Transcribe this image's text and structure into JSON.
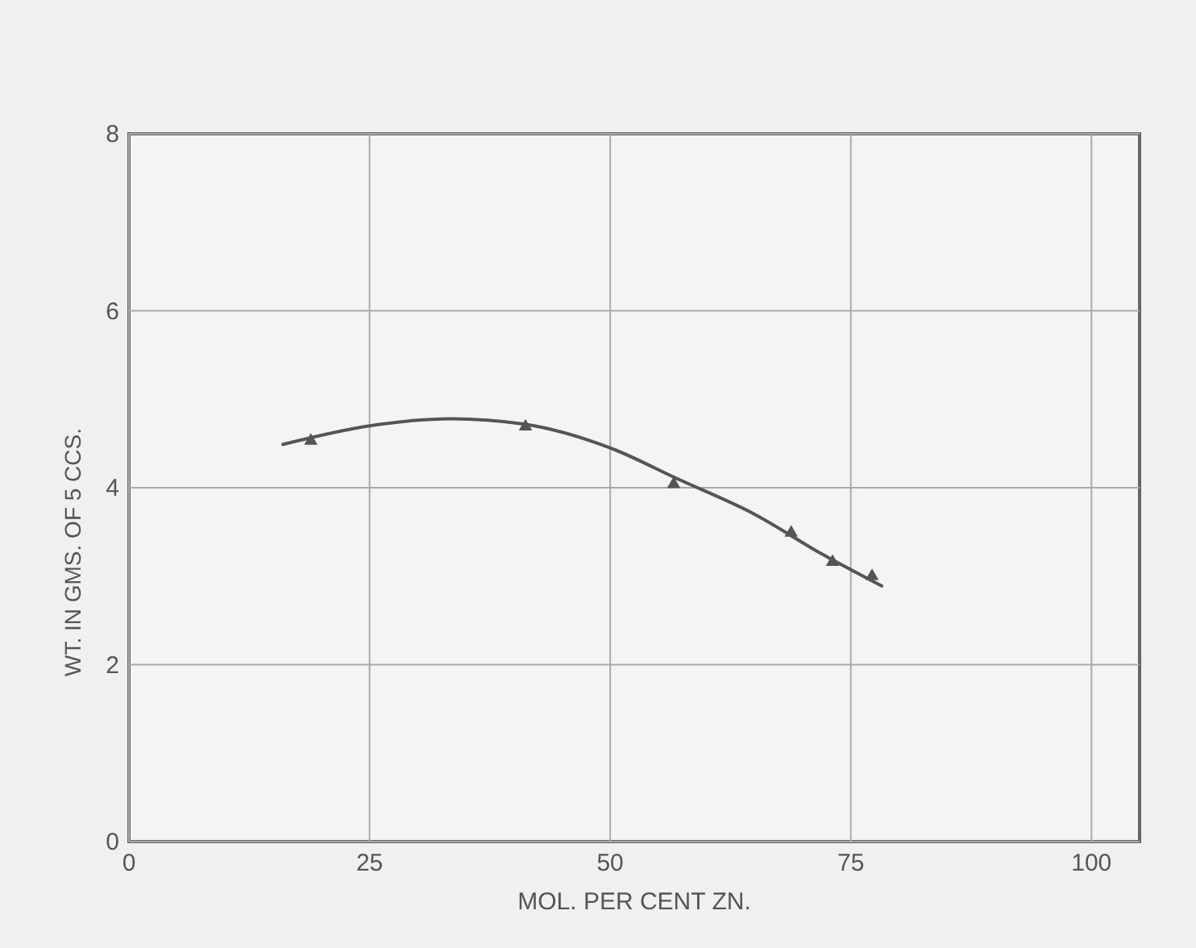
{
  "chart_data": {
    "type": "scatter",
    "xlabel": "MOL. PER CENT ZN.",
    "ylabel": "WT. IN GMS. OF 5 CCS.",
    "xlim": [
      0,
      105
    ],
    "xticks": [
      0,
      25,
      50,
      75,
      100
    ],
    "ylim": [
      0,
      8
    ],
    "yticks": [
      0,
      2,
      4,
      6,
      8
    ],
    "grid": true,
    "series": [
      {
        "type": "line",
        "color": "#555555",
        "marker": "none",
        "line_style": "solid",
        "x": [
          16,
          25,
          33.5,
          41,
          50,
          57,
          65,
          72,
          78.2
        ],
        "values": [
          4.49,
          4.7,
          4.78,
          4.72,
          4.45,
          4.1,
          3.7,
          3.25,
          2.89
        ]
      },
      {
        "color": "#555555",
        "marker": "triangle",
        "x": [
          18.9,
          41.2,
          56.6,
          68.8,
          73.1,
          77.2
        ],
        "values": [
          4.53,
          4.69,
          4.04,
          3.49,
          3.16,
          3.0
        ]
      }
    ]
  }
}
